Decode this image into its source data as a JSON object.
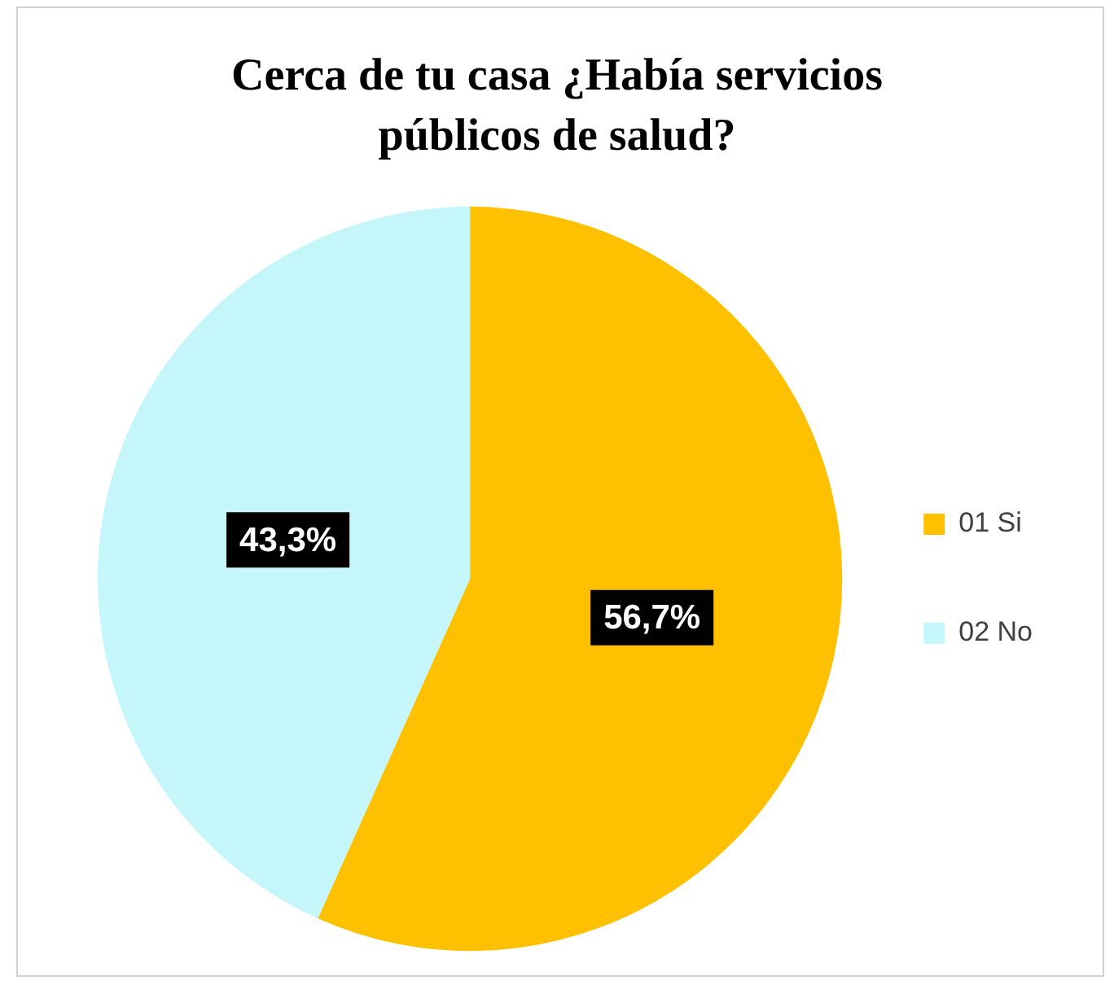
{
  "chart_data": {
    "type": "pie",
    "title": "Cerca de tu casa ¿Había servicios públicos de salud?",
    "categories": [
      "01 Si",
      "02 No"
    ],
    "values": [
      56.7,
      43.3
    ],
    "colors": [
      "#ffc000",
      "#c5f6fa"
    ],
    "value_labels": [
      "56,7%",
      "43,3%"
    ],
    "legend": "right"
  }
}
